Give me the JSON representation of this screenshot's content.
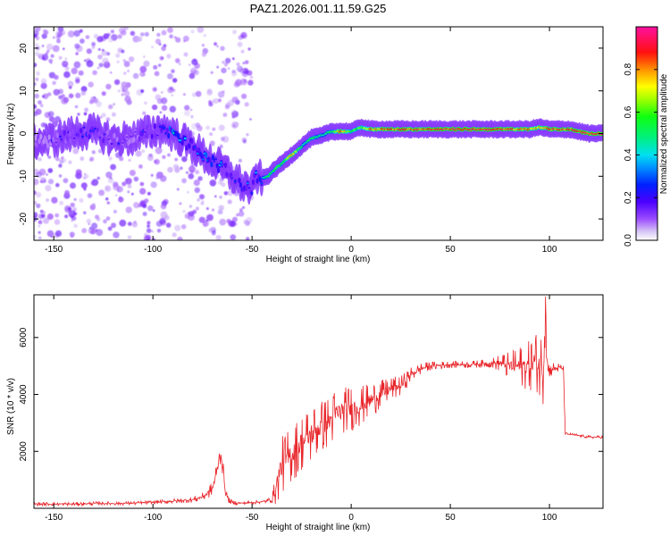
{
  "figure": {
    "title": "PAZ1.2026.001.11.59.G25"
  },
  "chart_data": [
    {
      "type": "heatmap",
      "title": "PAZ1.2026.001.11.59.G25",
      "xlabel": "Height of straight line (km)",
      "ylabel": "Frequency (Hz)",
      "xlim": [
        -160,
        127
      ],
      "ylim": [
        -25,
        25
      ],
      "xticks": [
        -150,
        -100,
        -50,
        0,
        50,
        100
      ],
      "yticks": [
        -20,
        -10,
        0,
        10,
        20
      ],
      "colorbar": {
        "label": "Normalized spectral amplitude",
        "range": [
          0.0,
          1.0
        ],
        "ticks": [
          "0.0",
          "0.2",
          "0.4",
          "0.6",
          "0.8"
        ],
        "tick_values": [
          0.0,
          0.2,
          0.4,
          0.6,
          0.8
        ]
      },
      "ridge": {
        "x": [
          -160,
          -150,
          -140,
          -130,
          -120,
          -110,
          -100,
          -95,
          -90,
          -85,
          -80,
          -75,
          -70,
          -65,
          -60,
          -55,
          -50,
          -48,
          -45,
          -42,
          -40,
          -35,
          -30,
          -25,
          -20,
          -15,
          -10,
          -5,
          0,
          5,
          10,
          20,
          30,
          40,
          50,
          60,
          70,
          80,
          90,
          95,
          100,
          110,
          120,
          127
        ],
        "y": [
          -2,
          -1.5,
          0,
          0.5,
          -1.5,
          -1,
          0.5,
          1,
          0,
          -1.5,
          -3,
          -5,
          -6.5,
          -8,
          -10,
          -12,
          -13,
          -10,
          -10.5,
          -10,
          -9,
          -7,
          -5,
          -3,
          -1,
          -0.5,
          0.5,
          0.5,
          0.5,
          1.5,
          1,
          1,
          1,
          1,
          1,
          1,
          1,
          1,
          1,
          1.5,
          1,
          1,
          0,
          0
        ],
        "peak_amplitude": [
          0.15,
          0.2,
          0.25,
          0.25,
          0.2,
          0.2,
          0.25,
          0.3,
          0.5,
          0.35,
          0.3,
          0.5,
          0.4,
          0.3,
          0.3,
          0.35,
          0.3,
          0.35,
          0.4,
          0.55,
          0.55,
          0.6,
          0.8,
          0.5,
          0.55,
          0.5,
          0.55,
          0.9,
          0.6,
          0.65,
          0.85,
          0.9,
          0.9,
          0.95,
          0.95,
          0.95,
          0.95,
          0.9,
          0.85,
          0.75,
          0.9,
          0.9,
          0.95,
          0.95
        ]
      },
      "scatter_region": {
        "x": [
          -160,
          -50
        ],
        "y": [
          -25,
          25
        ],
        "amplitude": [
          0.0,
          0.15
        ]
      }
    },
    {
      "type": "line",
      "xlabel": "Height of straight line (km)",
      "ylabel": "SNR (10 * v/v)",
      "xlim": [
        -160,
        127
      ],
      "ylim": [
        0,
        7500
      ],
      "xticks": [
        -150,
        -100,
        -50,
        0,
        50,
        100
      ],
      "yticks": [
        2000,
        4000,
        6000
      ],
      "color": "#e8252a",
      "series": [
        {
          "name": "SNR",
          "x": [
            -160,
            -150,
            -140,
            -130,
            -120,
            -110,
            -100,
            -90,
            -80,
            -75,
            -72,
            -70,
            -68,
            -66,
            -65,
            -64,
            -63,
            -62,
            -60,
            -55,
            -50,
            -45,
            -40,
            -38,
            -36,
            -35,
            -34,
            -30,
            -25,
            -20,
            -15,
            -12,
            -10,
            -8,
            -5,
            -2,
            0,
            5,
            10,
            15,
            20,
            25,
            30,
            35,
            40,
            50,
            60,
            70,
            75,
            80,
            85,
            90,
            93,
            95,
            97,
            98,
            99,
            100,
            103,
            105,
            107,
            108,
            110,
            115,
            120,
            127
          ],
          "y": [
            150,
            150,
            150,
            170,
            170,
            180,
            210,
            250,
            300,
            400,
            550,
            700,
            1200,
            2000,
            1600,
            900,
            500,
            300,
            200,
            180,
            200,
            230,
            300,
            700,
            1300,
            1500,
            1600,
            1900,
            2300,
            2600,
            2900,
            3000,
            3100,
            3300,
            3400,
            3500,
            3500,
            3600,
            3800,
            4000,
            4200,
            4300,
            4700,
            4900,
            5000,
            5050,
            5050,
            5100,
            5100,
            5000,
            5000,
            5000,
            5200,
            5000,
            4900,
            7500,
            4900,
            4900,
            4900,
            4950,
            4900,
            2600,
            2600,
            2550,
            2500,
            2500
          ],
          "spread": [
            60,
            60,
            60,
            60,
            60,
            60,
            60,
            80,
            100,
            150,
            200,
            250,
            400,
            500,
            400,
            250,
            150,
            100,
            80,
            60,
            60,
            60,
            100,
            600,
            900,
            1000,
            1000,
            1000,
            1000,
            1000,
            900,
            900,
            900,
            900,
            800,
            800,
            800,
            700,
            600,
            500,
            400,
            350,
            250,
            200,
            150,
            120,
            120,
            150,
            300,
            500,
            700,
            900,
            1000,
            1200,
            1300,
            1200,
            1000,
            300,
            200,
            150,
            100,
            60,
            50,
            50,
            50,
            50
          ]
        }
      ]
    }
  ]
}
